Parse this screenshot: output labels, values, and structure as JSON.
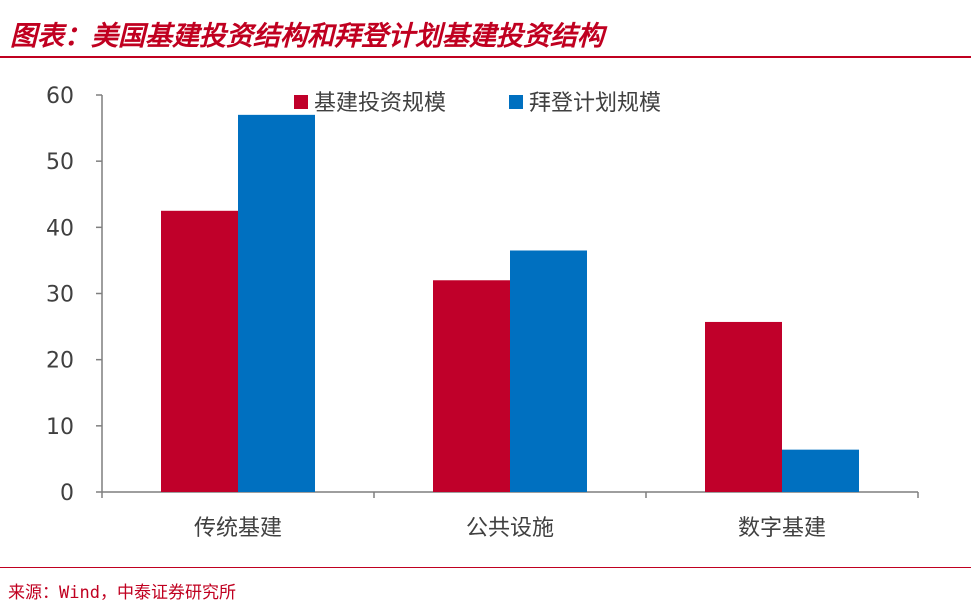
{
  "header": {
    "title": "图表：美国基建投资结构和拜登计划基建投资结构"
  },
  "footer": {
    "source": "来源：Wind，中泰证券研究所"
  },
  "colors": {
    "series1": "#c0002a",
    "series2": "#0070c0",
    "title": "#c00020",
    "axis": "#7f7f7f",
    "text": "#404040"
  },
  "chart_data": {
    "type": "bar",
    "categories": [
      "传统基建",
      "公共设施",
      "数字基建"
    ],
    "series": [
      {
        "name": "基建投资规模",
        "values": [
          42.5,
          32,
          25.7
        ],
        "color": "#c0002a"
      },
      {
        "name": "拜登计划规模",
        "values": [
          57,
          36.5,
          6.4
        ],
        "color": "#0070c0"
      }
    ],
    "yticks": [
      0,
      10,
      20,
      30,
      40,
      50,
      60
    ],
    "ylim": [
      0,
      60
    ],
    "legend_position": "top",
    "grid": false,
    "xlabel": "",
    "ylabel": ""
  }
}
